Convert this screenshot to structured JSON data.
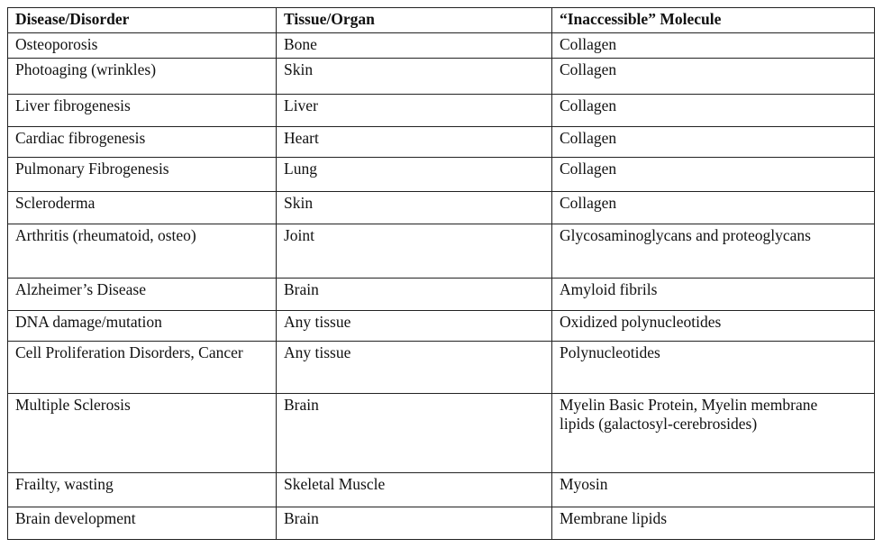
{
  "table": {
    "header": [
      "Disease/Disorder",
      "Tissue/Organ",
      "“Inaccessible” Molecule"
    ],
    "rows": [
      [
        "Osteoporosis",
        "Bone",
        "Collagen"
      ],
      [
        "Photoaging (wrinkles)",
        "Skin",
        "Collagen"
      ],
      [
        "Liver fibrogenesis",
        "Liver",
        "Collagen"
      ],
      [
        "Cardiac fibrogenesis",
        "Heart",
        "Collagen"
      ],
      [
        "Pulmonary Fibrogenesis",
        "Lung",
        "Collagen"
      ],
      [
        "Scleroderma",
        "Skin",
        "Collagen"
      ],
      [
        "Arthritis (rheumatoid, osteo)",
        "Joint",
        "Glycosaminoglycans and proteoglycans"
      ],
      [
        "Alzheimer’s Disease",
        "Brain",
        "Amyloid fibrils"
      ],
      [
        "DNA damage/mutation",
        "Any tissue",
        "Oxidized polynucleotides"
      ],
      [
        "Cell Proliferation Disorders, Cancer",
        "Any tissue",
        "Polynucleotides"
      ],
      [
        "Multiple Sclerosis",
        "Brain",
        "Myelin Basic Protein, Myelin membrane lipids (galactosyl-cerebrosides)"
      ],
      [
        "Frailty, wasting",
        "Skeletal Muscle",
        "Myosin"
      ],
      [
        "Brain development",
        "Brain",
        "Membrane lipids"
      ]
    ]
  }
}
